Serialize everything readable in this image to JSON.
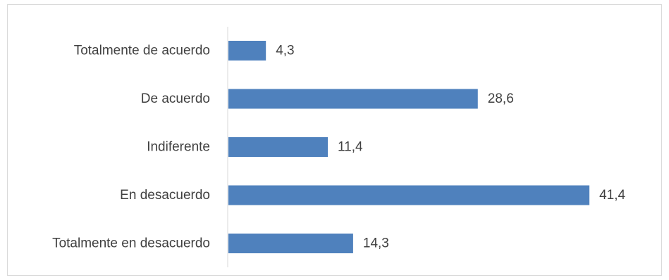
{
  "chart_data": {
    "type": "bar",
    "orientation": "horizontal",
    "categories": [
      "Totalmente de acuerdo",
      "De acuerdo",
      "Indiferente",
      "En desacuerdo",
      "Totalmente en desacuerdo"
    ],
    "values": [
      4.3,
      28.6,
      11.4,
      41.4,
      14.3
    ],
    "value_labels": [
      "4,3",
      "28,6",
      "11,4",
      "41,4",
      "14,3"
    ],
    "title": "",
    "xlabel": "",
    "ylabel": "",
    "xlim": [
      0,
      41.4
    ],
    "grid": false,
    "legend": "none",
    "bar_color": "#4f81bd",
    "axis_color": "#d9d9d9",
    "text_color": "#404040"
  }
}
